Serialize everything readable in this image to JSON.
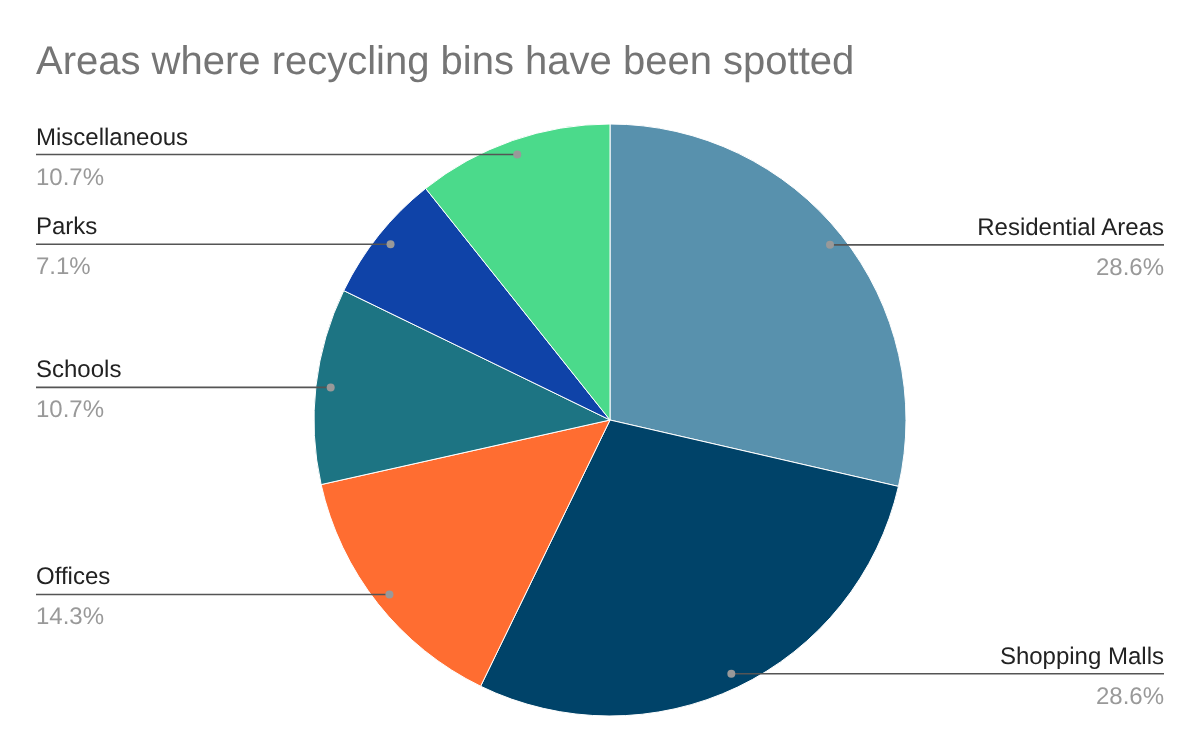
{
  "chart_data": {
    "type": "pie",
    "title": "Areas where recycling bins have been spotted",
    "categories": [
      "Residential Areas",
      "Shopping Malls",
      "Offices",
      "Schools",
      "Parks",
      "Miscellaneous"
    ],
    "values": [
      28.6,
      28.6,
      14.3,
      10.7,
      7.1,
      10.7
    ],
    "value_labels": [
      "28.6%",
      "28.6%",
      "14.3%",
      "10.7%",
      "7.1%",
      "10.7%"
    ],
    "colors": [
      "#5891ad",
      "#004369",
      "#ff6d31",
      "#1d7483",
      "#0f43a8",
      "#4bda8b"
    ]
  }
}
